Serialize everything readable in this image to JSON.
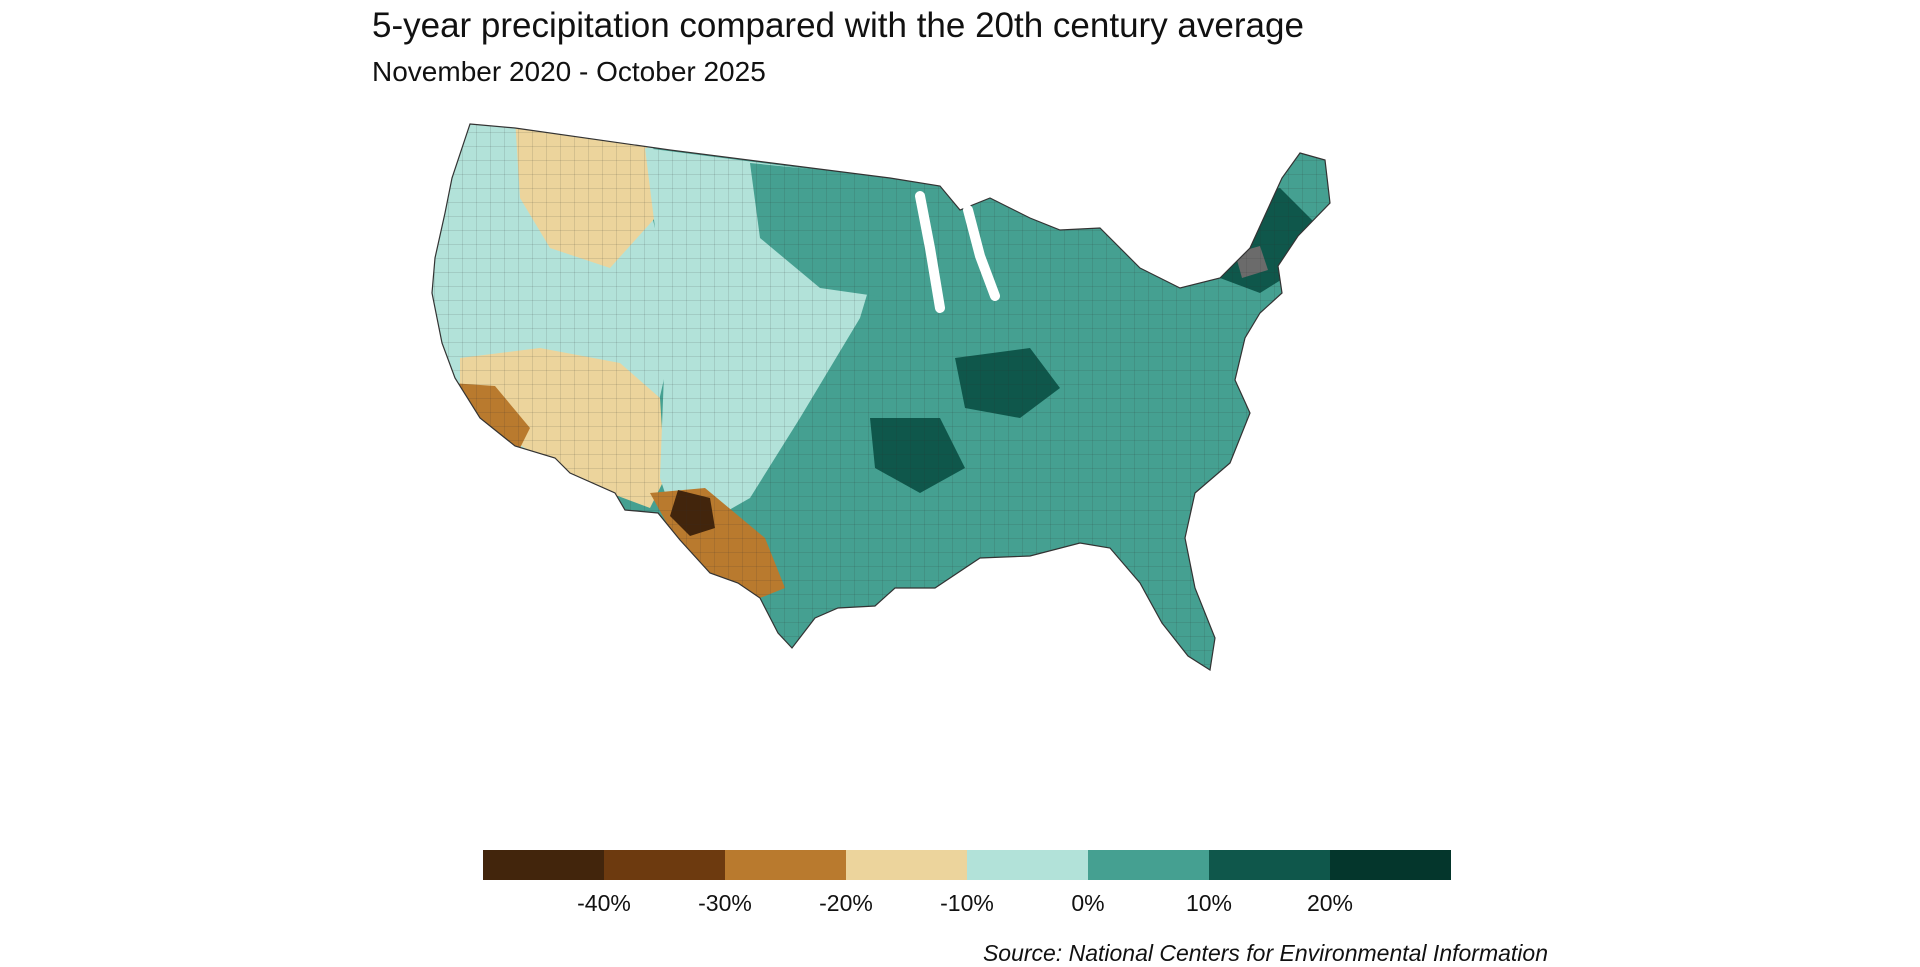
{
  "title": "5-year precipitation compared with the 20th century average",
  "subtitle": "November 2020 - October 2025",
  "legend": {
    "colors": [
      "#42250c",
      "#6d3a0f",
      "#b97a2e",
      "#ecd49c",
      "#b2e2d9",
      "#45a091",
      "#0f574b",
      "#04362c"
    ],
    "labels": [
      "-40%",
      "-30%",
      "-20%",
      "-10%",
      "0%",
      "10%",
      "20%"
    ]
  },
  "missing_color": "#6b6b6b",
  "map_regions": {
    "west_coast": "#b2e2d9",
    "desert_southwest": "#ecd49c",
    "lower_colorado": "#b97a2e",
    "west_texas": "#b97a2e",
    "west_texas_core": "#42250c",
    "northern_rockies": "#ecd49c",
    "plains": "#b2e2d9",
    "north_central": "#45a091",
    "east": "#45a091",
    "northeast_core": "#0f574b",
    "ohio_valley_core": "#0f574b",
    "gulf_coast": "#45a091"
  },
  "source": "Source: National Centers for Environmental Information"
}
